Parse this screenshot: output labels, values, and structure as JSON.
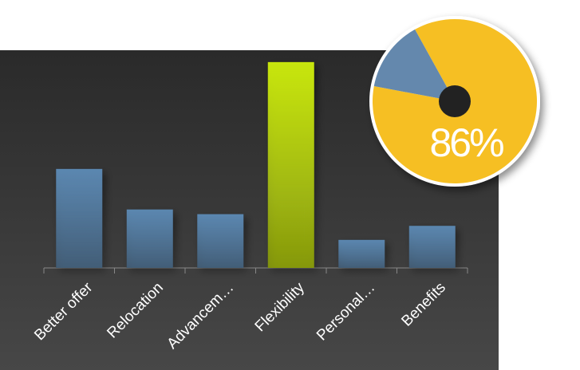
{
  "chart_data": [
    {
      "type": "bar",
      "categories": [
        "Better offer",
        "Relocation",
        "Advancem…",
        "Flexibility",
        "Personal…",
        "Benefits"
      ],
      "values": [
        127,
        75,
        69,
        264,
        36,
        54
      ],
      "colors": [
        "#5b87b0",
        "#5b87b0",
        "#5b87b0",
        "#c8e60a",
        "#5b87b0",
        "#5b87b0"
      ],
      "ylim": [
        0,
        270
      ]
    },
    {
      "type": "pie",
      "values": [
        86,
        14
      ],
      "value_labels": [
        "86%",
        null
      ],
      "colors": [
        "#f6bf23",
        "#6488ad"
      ]
    }
  ]
}
